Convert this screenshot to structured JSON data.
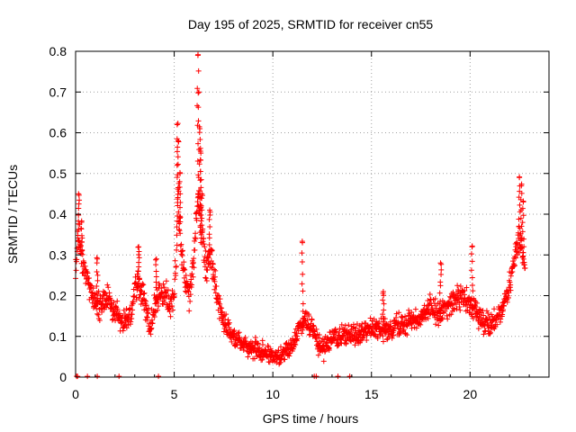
{
  "chart_data": {
    "type": "scatter",
    "title": "Day 195 of 2025, SRMTID for receiver cn55",
    "xlabel": "GPS time / hours",
    "ylabel": "SRMTID / TECUs",
    "xlim": [
      0,
      24
    ],
    "ylim": [
      0,
      0.8
    ],
    "x_ticks": [
      0,
      5,
      10,
      15,
      20
    ],
    "x_tick_labels": [
      "0",
      "5",
      "10",
      "15",
      "20"
    ],
    "y_ticks": [
      0,
      0.1,
      0.2,
      0.3,
      0.4,
      0.5,
      0.6,
      0.7,
      0.8
    ],
    "y_tick_labels": [
      "0",
      "0.1",
      "0.2",
      "0.3",
      "0.4",
      "0.5",
      "0.6",
      "0.7",
      "0.8"
    ],
    "grid": true,
    "marker": "+",
    "color": "#ff0000",
    "series": [
      {
        "name": "SRMTID",
        "profile_x": [
          0.0,
          0.1,
          0.2,
          0.3,
          0.5,
          0.8,
          1.0,
          1.3,
          1.6,
          2.0,
          2.4,
          2.8,
          3.0,
          3.2,
          3.5,
          3.8,
          4.0,
          4.3,
          4.6,
          4.8,
          5.0,
          5.2,
          5.4,
          5.6,
          5.8,
          6.0,
          6.2,
          6.4,
          6.6,
          6.8,
          7.0,
          7.3,
          7.6,
          8.0,
          8.5,
          9.0,
          9.5,
          10.0,
          10.5,
          11.0,
          11.3,
          11.6,
          12.0,
          12.3,
          12.6,
          13.0,
          13.5,
          14.0,
          14.5,
          15.0,
          15.5,
          16.0,
          16.5,
          17.0,
          17.5,
          18.0,
          18.5,
          19.0,
          19.5,
          20.0,
          20.5,
          21.0,
          21.5,
          22.0,
          22.3,
          22.5,
          22.8
        ],
        "profile_y": [
          0.26,
          0.33,
          0.36,
          0.3,
          0.26,
          0.2,
          0.18,
          0.17,
          0.2,
          0.16,
          0.14,
          0.15,
          0.22,
          0.24,
          0.18,
          0.12,
          0.17,
          0.21,
          0.2,
          0.17,
          0.2,
          0.42,
          0.3,
          0.22,
          0.2,
          0.3,
          0.45,
          0.35,
          0.28,
          0.3,
          0.25,
          0.18,
          0.12,
          0.1,
          0.08,
          0.07,
          0.06,
          0.05,
          0.06,
          0.08,
          0.12,
          0.14,
          0.12,
          0.08,
          0.07,
          0.09,
          0.1,
          0.1,
          0.11,
          0.12,
          0.12,
          0.12,
          0.13,
          0.14,
          0.15,
          0.17,
          0.16,
          0.18,
          0.2,
          0.18,
          0.14,
          0.13,
          0.15,
          0.23,
          0.3,
          0.35,
          0.25
        ],
        "spread": 0.045,
        "spikes": [
          {
            "x": 0.15,
            "y": 0.45
          },
          {
            "x": 0.3,
            "y": 0.38
          },
          {
            "x": 1.1,
            "y": 0.29
          },
          {
            "x": 3.2,
            "y": 0.32
          },
          {
            "x": 4.1,
            "y": 0.29
          },
          {
            "x": 5.15,
            "y": 0.62
          },
          {
            "x": 5.2,
            "y": 0.58
          },
          {
            "x": 5.3,
            "y": 0.5
          },
          {
            "x": 6.2,
            "y": 0.79
          },
          {
            "x": 6.25,
            "y": 0.7
          },
          {
            "x": 6.3,
            "y": 0.61
          },
          {
            "x": 6.35,
            "y": 0.55
          },
          {
            "x": 6.4,
            "y": 0.45
          },
          {
            "x": 6.8,
            "y": 0.41
          },
          {
            "x": 11.5,
            "y": 0.33
          },
          {
            "x": 15.6,
            "y": 0.21
          },
          {
            "x": 18.5,
            "y": 0.28
          },
          {
            "x": 20.1,
            "y": 0.32
          },
          {
            "x": 22.5,
            "y": 0.49
          },
          {
            "x": 22.6,
            "y": 0.47
          },
          {
            "x": 22.7,
            "y": 0.43
          }
        ],
        "zero_points_x": [
          0.05,
          0.1,
          0.6,
          1.1,
          2.2,
          4.2,
          12.1,
          12.2,
          13.3,
          13.9
        ]
      }
    ]
  }
}
